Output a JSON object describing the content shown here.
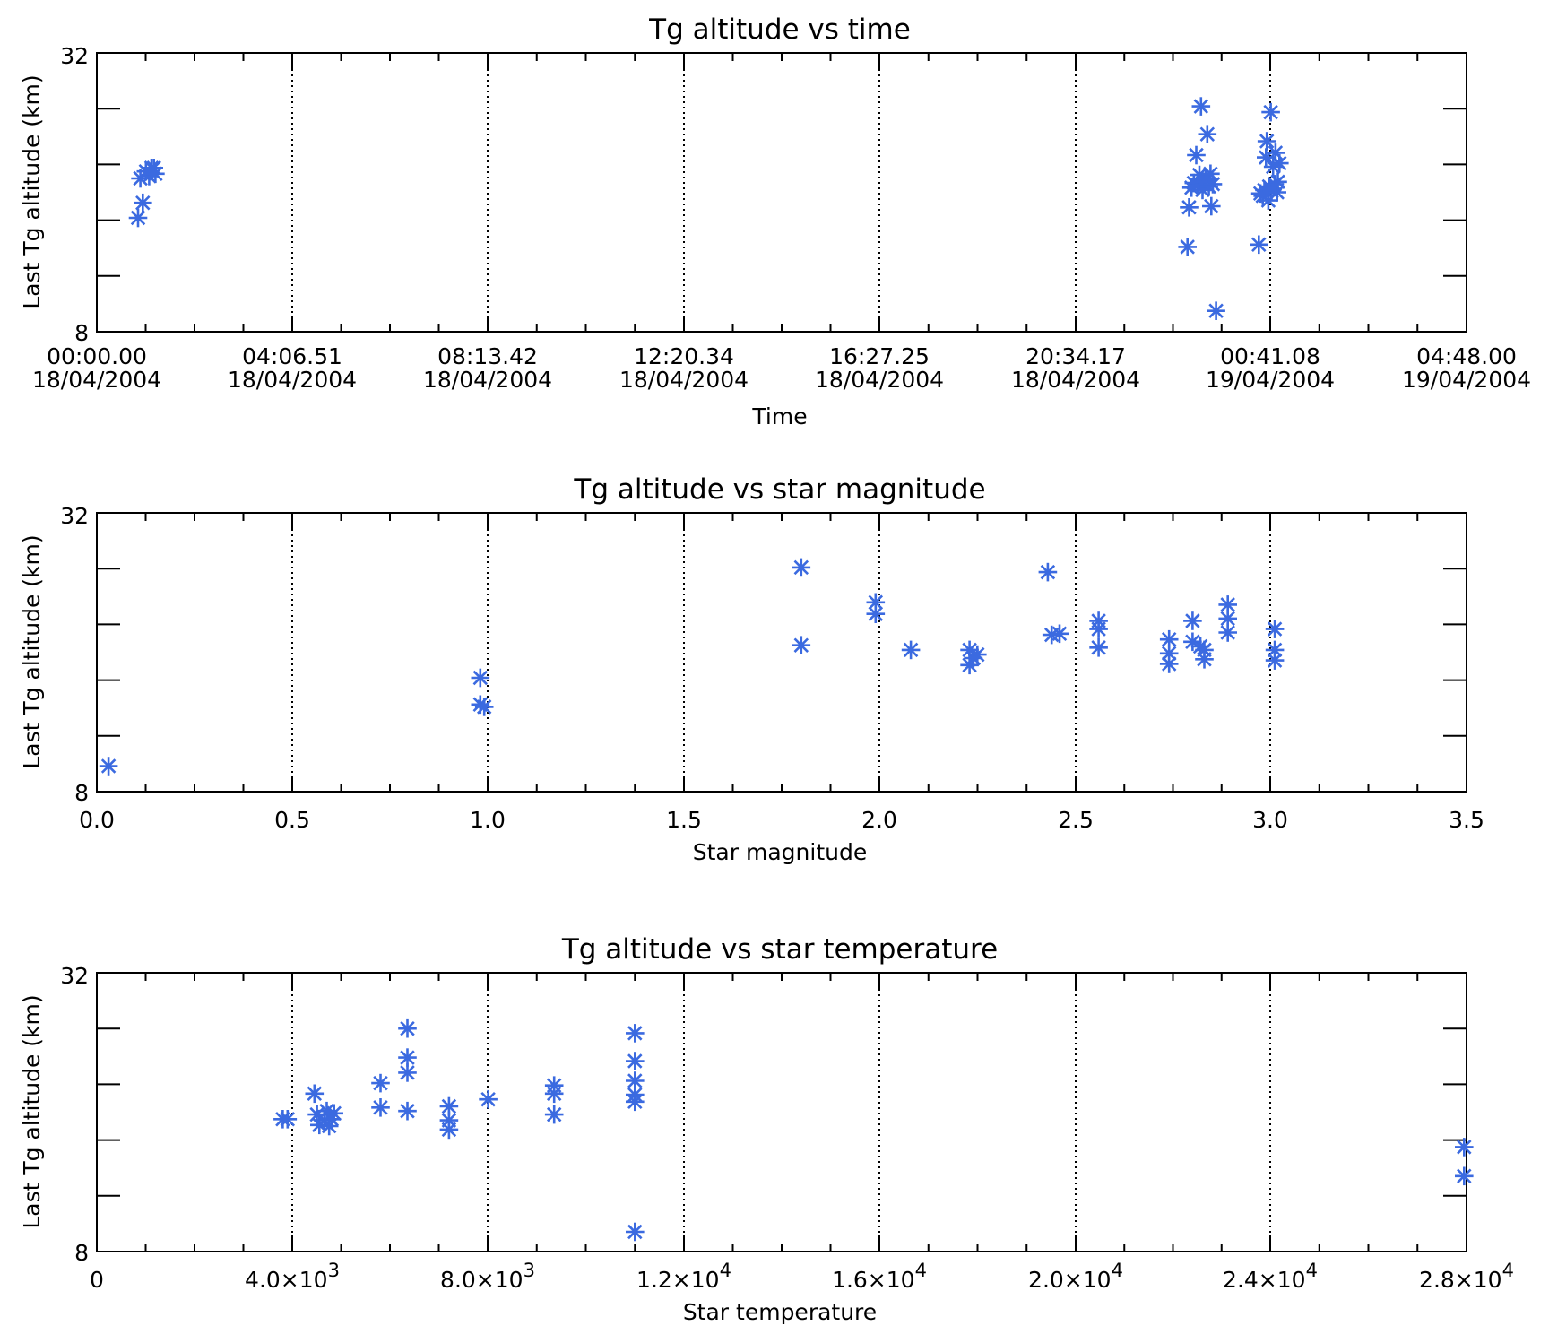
{
  "chart_data": [
    {
      "type": "scatter",
      "title": "Tg altitude vs time",
      "xlabel": "Time",
      "ylabel": "Last Tg altitude (km)",
      "xlim": [
        "00:00.00 18/04/2004",
        "04:48.00 19/04/2004"
      ],
      "ylim": [
        8,
        32
      ],
      "grid": "vertical dotted lines at major ticks",
      "marker": "asterisk",
      "marker_color": "#3b6ae0",
      "x_tick_labels": [
        {
          "time": "00:00.00",
          "date": "18/04/2004"
        },
        {
          "time": "04:06.51",
          "date": "18/04/2004"
        },
        {
          "time": "08:13.42",
          "date": "18/04/2004"
        },
        {
          "time": "12:20.34",
          "date": "18/04/2004"
        },
        {
          "time": "16:27.25",
          "date": "18/04/2004"
        },
        {
          "time": "20:34.17",
          "date": "18/04/2004"
        },
        {
          "time": "00:41.08",
          "date": "19/04/2004"
        },
        {
          "time": "04:48.00",
          "date": "19/04/2004"
        }
      ],
      "y_tick_labels": [
        "32",
        "8"
      ],
      "points": [
        {
          "x": "2004-04-18 00:52",
          "y": 17.8
        },
        {
          "x": "2004-04-18 00:58",
          "y": 19.1
        },
        {
          "x": "2004-04-18 00:55",
          "y": 21.2
        },
        {
          "x": "2004-04-18 01:02",
          "y": 21.8
        },
        {
          "x": "2004-04-18 01:06",
          "y": 21.4
        },
        {
          "x": "2004-04-18 01:09",
          "y": 22.1
        },
        {
          "x": "2004-04-18 01:12",
          "y": 22.1
        },
        {
          "x": "2004-04-18 01:14",
          "y": 21.6
        },
        {
          "x": "2004-04-18 22:56",
          "y": 15.3
        },
        {
          "x": "2004-04-18 22:58",
          "y": 18.7
        },
        {
          "x": "2004-04-18 23:01",
          "y": 20.4
        },
        {
          "x": "2004-04-18 23:04",
          "y": 20.8
        },
        {
          "x": "2004-04-18 23:07",
          "y": 23.2
        },
        {
          "x": "2004-04-18 23:09",
          "y": 20.6
        },
        {
          "x": "2004-04-18 23:11",
          "y": 21.5
        },
        {
          "x": "2004-04-18 23:13",
          "y": 27.4
        },
        {
          "x": "2004-04-18 23:15",
          "y": 20.2
        },
        {
          "x": "2004-04-18 23:17",
          "y": 20.9
        },
        {
          "x": "2004-04-18 23:19",
          "y": 21.1
        },
        {
          "x": "2004-04-18 23:21",
          "y": 25.0
        },
        {
          "x": "2004-04-18 23:23",
          "y": 20.5
        },
        {
          "x": "2004-04-18 23:25",
          "y": 21.6
        },
        {
          "x": "2004-04-18 23:26",
          "y": 18.8
        },
        {
          "x": "2004-04-18 23:28",
          "y": 20.7
        },
        {
          "x": "2004-04-18 23:32",
          "y": 9.8
        },
        {
          "x": "2004-04-19 00:26",
          "y": 15.5
        },
        {
          "x": "2004-04-19 00:28",
          "y": 19.9
        },
        {
          "x": "2004-04-19 00:31",
          "y": 19.7
        },
        {
          "x": "2004-04-19 00:33",
          "y": 20.2
        },
        {
          "x": "2004-04-19 00:35",
          "y": 23.0
        },
        {
          "x": "2004-04-19 00:36",
          "y": 24.4
        },
        {
          "x": "2004-04-19 00:38",
          "y": 19.3
        },
        {
          "x": "2004-04-19 00:39",
          "y": 20.5
        },
        {
          "x": "2004-04-19 00:41",
          "y": 26.9
        },
        {
          "x": "2004-04-19 00:42",
          "y": 20.1
        },
        {
          "x": "2004-04-19 00:44",
          "y": 22.2
        },
        {
          "x": "2004-04-19 00:46",
          "y": 20.7
        },
        {
          "x": "2004-04-19 00:47",
          "y": 23.4
        },
        {
          "x": "2004-04-19 00:49",
          "y": 20.0
        },
        {
          "x": "2004-04-19 00:50",
          "y": 20.9
        },
        {
          "x": "2004-04-19 00:52",
          "y": 22.5
        }
      ]
    },
    {
      "type": "scatter",
      "title": "Tg altitude vs star magnitude",
      "xlabel": "Star magnitude",
      "ylabel": "Last Tg altitude (km)",
      "xlim": [
        0.0,
        3.5
      ],
      "ylim": [
        8,
        32
      ],
      "grid": "vertical dotted lines at major ticks",
      "marker": "asterisk",
      "marker_color": "#3b6ae0",
      "x_tick_labels": [
        "0.0",
        "0.5",
        "1.0",
        "1.5",
        "2.0",
        "2.5",
        "3.0",
        "3.5"
      ],
      "y_tick_labels": [
        "32",
        "8"
      ],
      "points": [
        {
          "x": 0.03,
          "y": 10.2
        },
        {
          "x": 0.98,
          "y": 15.5
        },
        {
          "x": 0.98,
          "y": 17.8
        },
        {
          "x": 0.99,
          "y": 15.3
        },
        {
          "x": 1.8,
          "y": 27.3
        },
        {
          "x": 1.8,
          "y": 20.6
        },
        {
          "x": 1.99,
          "y": 24.3
        },
        {
          "x": 1.99,
          "y": 23.3
        },
        {
          "x": 2.08,
          "y": 20.2
        },
        {
          "x": 2.23,
          "y": 20.2
        },
        {
          "x": 2.24,
          "y": 19.5
        },
        {
          "x": 2.23,
          "y": 18.9
        },
        {
          "x": 2.25,
          "y": 19.8
        },
        {
          "x": 2.43,
          "y": 26.9
        },
        {
          "x": 2.44,
          "y": 21.5
        },
        {
          "x": 2.46,
          "y": 21.6
        },
        {
          "x": 2.56,
          "y": 22.7
        },
        {
          "x": 2.56,
          "y": 22.0
        },
        {
          "x": 2.56,
          "y": 20.4
        },
        {
          "x": 2.74,
          "y": 21.1
        },
        {
          "x": 2.74,
          "y": 19.9
        },
        {
          "x": 2.74,
          "y": 19.0
        },
        {
          "x": 2.8,
          "y": 22.7
        },
        {
          "x": 2.8,
          "y": 20.9
        },
        {
          "x": 2.82,
          "y": 20.5
        },
        {
          "x": 2.83,
          "y": 20.2
        },
        {
          "x": 2.83,
          "y": 19.4
        },
        {
          "x": 2.89,
          "y": 24.1
        },
        {
          "x": 2.89,
          "y": 22.9
        },
        {
          "x": 2.89,
          "y": 21.7
        },
        {
          "x": 3.01,
          "y": 22.0
        },
        {
          "x": 3.01,
          "y": 20.2
        },
        {
          "x": 3.01,
          "y": 19.3
        }
      ]
    },
    {
      "type": "scatter",
      "title": "Tg altitude vs star temperature",
      "xlabel": "Star temperature",
      "ylabel": "Last Tg altitude (km)",
      "xlim": [
        0,
        28000
      ],
      "ylim": [
        8,
        32
      ],
      "grid": "vertical dotted lines at major ticks",
      "marker": "asterisk",
      "marker_color": "#3b6ae0",
      "x_tick_labels": [
        {
          "mantissa": "0",
          "exponent": ""
        },
        {
          "mantissa": "4.0×10",
          "exponent": "3"
        },
        {
          "mantissa": "8.0×10",
          "exponent": "3"
        },
        {
          "mantissa": "1.2×10",
          "exponent": "4"
        },
        {
          "mantissa": "1.6×10",
          "exponent": "4"
        },
        {
          "mantissa": "2.0×10",
          "exponent": "4"
        },
        {
          "mantissa": "2.4×10",
          "exponent": "4"
        },
        {
          "mantissa": "2.8×10",
          "exponent": "4"
        }
      ],
      "y_tick_labels": [
        "32",
        "8"
      ],
      "points": [
        {
          "x": 3800,
          "y": 19.4
        },
        {
          "x": 3900,
          "y": 19.4
        },
        {
          "x": 4450,
          "y": 21.6
        },
        {
          "x": 4500,
          "y": 19.8
        },
        {
          "x": 4550,
          "y": 18.9
        },
        {
          "x": 4650,
          "y": 19.3
        },
        {
          "x": 4700,
          "y": 20.1
        },
        {
          "x": 4750,
          "y": 18.8
        },
        {
          "x": 4800,
          "y": 19.4
        },
        {
          "x": 4850,
          "y": 19.9
        },
        {
          "x": 5800,
          "y": 22.5
        },
        {
          "x": 5800,
          "y": 20.4
        },
        {
          "x": 6350,
          "y": 27.2
        },
        {
          "x": 6350,
          "y": 24.7
        },
        {
          "x": 6350,
          "y": 23.4
        },
        {
          "x": 6350,
          "y": 20.1
        },
        {
          "x": 7200,
          "y": 20.5
        },
        {
          "x": 7200,
          "y": 19.3
        },
        {
          "x": 7200,
          "y": 18.5
        },
        {
          "x": 8000,
          "y": 21.1
        },
        {
          "x": 9350,
          "y": 22.3
        },
        {
          "x": 9350,
          "y": 21.6
        },
        {
          "x": 9350,
          "y": 19.8
        },
        {
          "x": 11000,
          "y": 26.8
        },
        {
          "x": 11000,
          "y": 24.4
        },
        {
          "x": 11000,
          "y": 22.7
        },
        {
          "x": 11000,
          "y": 21.5
        },
        {
          "x": 11000,
          "y": 20.9
        },
        {
          "x": 11000,
          "y": 9.7
        },
        {
          "x": 27950,
          "y": 17.0
        },
        {
          "x": 27950,
          "y": 14.5
        }
      ]
    }
  ]
}
